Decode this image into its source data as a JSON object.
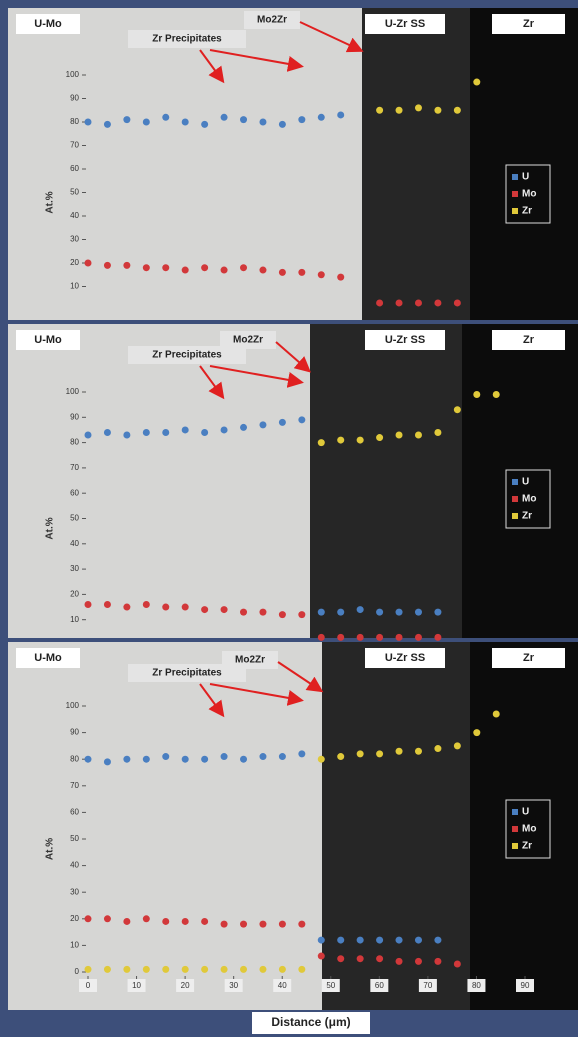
{
  "chart_data": [
    {
      "type": "scatter",
      "ylabel": "At.%",
      "regions": [
        "U-Mo",
        "U-Zr SS",
        "Zr"
      ],
      "annotations": [
        "Zr Precipitates",
        "Mo2Zr"
      ],
      "x": [
        0,
        4,
        8,
        12,
        16,
        20,
        24,
        28,
        32,
        36,
        40,
        44,
        48,
        52,
        56,
        60,
        64,
        68,
        72,
        76,
        80,
        84
      ],
      "ylim": [
        0,
        100
      ],
      "yticks": [
        10,
        20,
        30,
        40,
        50,
        60,
        70,
        80,
        90,
        100
      ],
      "series": [
        {
          "name": "U",
          "color": "#4a7fc1",
          "values": [
            80,
            79,
            81,
            80,
            82,
            80,
            79,
            82,
            81,
            80,
            79,
            81,
            82,
            83,
            null,
            null,
            null,
            null,
            null,
            null,
            null,
            null
          ]
        },
        {
          "name": "Mo",
          "color": "#d2383a",
          "values": [
            20,
            19,
            19,
            18,
            18,
            17,
            18,
            17,
            18,
            17,
            16,
            16,
            15,
            14,
            null,
            3,
            3,
            3,
            3,
            3,
            null,
            null
          ]
        },
        {
          "name": "Zr",
          "color": "#e0c93a",
          "values": [
            null,
            null,
            null,
            null,
            null,
            null,
            null,
            null,
            null,
            null,
            null,
            null,
            null,
            null,
            null,
            85,
            85,
            86,
            85,
            85,
            97,
            null
          ]
        }
      ]
    },
    {
      "type": "scatter",
      "ylabel": "At.%",
      "regions": [
        "U-Mo",
        "U-Zr SS",
        "Zr"
      ],
      "annotations": [
        "Zr Precipitates",
        "Mo2Zr"
      ],
      "x": [
        0,
        4,
        8,
        12,
        16,
        20,
        24,
        28,
        32,
        36,
        40,
        44,
        48,
        52,
        56,
        60,
        64,
        68,
        72,
        76,
        80,
        84
      ],
      "ylim": [
        0,
        100
      ],
      "yticks": [
        10,
        20,
        30,
        40,
        50,
        60,
        70,
        80,
        90,
        100
      ],
      "series": [
        {
          "name": "U",
          "color": "#4a7fc1",
          "values": [
            83,
            84,
            83,
            84,
            84,
            85,
            84,
            85,
            86,
            87,
            88,
            89,
            13,
            13,
            14,
            13,
            13,
            13,
            13,
            null,
            null,
            null
          ]
        },
        {
          "name": "Mo",
          "color": "#d2383a",
          "values": [
            16,
            16,
            15,
            16,
            15,
            15,
            14,
            14,
            13,
            13,
            12,
            12,
            3,
            3,
            3,
            3,
            3,
            3,
            3,
            null,
            null,
            null
          ]
        },
        {
          "name": "Zr",
          "color": "#e0c93a",
          "values": [
            null,
            null,
            null,
            null,
            null,
            null,
            null,
            null,
            null,
            null,
            null,
            null,
            80,
            81,
            81,
            82,
            83,
            83,
            84,
            93,
            99,
            99
          ]
        }
      ]
    },
    {
      "type": "scatter",
      "ylabel": "At.%",
      "xlabel": "Distance (μm)",
      "regions": [
        "U-Mo",
        "U-Zr SS",
        "Zr"
      ],
      "annotations": [
        "Zr Precipitates",
        "Mo2Zr"
      ],
      "x": [
        0,
        4,
        8,
        12,
        16,
        20,
        24,
        28,
        32,
        36,
        40,
        44,
        48,
        52,
        56,
        60,
        64,
        68,
        72,
        76,
        80,
        84
      ],
      "xlim": [
        0,
        90
      ],
      "xticks": [
        0,
        10,
        20,
        30,
        40,
        50,
        60,
        70,
        80,
        90
      ],
      "ylim": [
        0,
        100
      ],
      "yticks": [
        0,
        10,
        20,
        30,
        40,
        50,
        60,
        70,
        80,
        90,
        100
      ],
      "series": [
        {
          "name": "U",
          "color": "#4a7fc1",
          "values": [
            80,
            79,
            80,
            80,
            81,
            80,
            80,
            81,
            80,
            81,
            81,
            82,
            12,
            12,
            12,
            12,
            12,
            12,
            12,
            null,
            null,
            null
          ]
        },
        {
          "name": "Mo",
          "color": "#d2383a",
          "values": [
            20,
            20,
            19,
            20,
            19,
            19,
            19,
            18,
            18,
            18,
            18,
            18,
            6,
            5,
            5,
            5,
            4,
            4,
            4,
            3,
            null,
            null
          ]
        },
        {
          "name": "Zr",
          "color": "#e0c93a",
          "values": [
            1,
            1,
            1,
            1,
            1,
            1,
            1,
            1,
            1,
            1,
            1,
            1,
            80,
            81,
            82,
            82,
            83,
            83,
            84,
            85,
            90,
            97
          ]
        }
      ]
    }
  ]
}
